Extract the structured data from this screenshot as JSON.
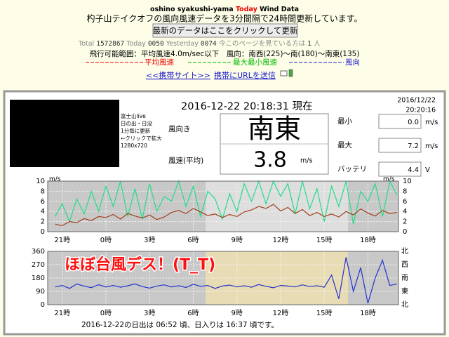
{
  "header": {
    "site": "oshino syakushi-yama",
    "today": "Today",
    "title": "Wind Data",
    "description": "杓子山テイクオフの風向風速データを3分間隔で24時間更新しています。",
    "refresh_button": "最新のデータはここをクリックして更新",
    "counter": {
      "total_label": "Total",
      "total": 1572867,
      "today_label": "Today",
      "today": "0050",
      "yesterday_label": "Yesterday",
      "yesterday": "0074",
      "viewers_label": "今このページを見ている方は",
      "viewers": 1,
      "viewers_unit": "人"
    },
    "flyable_range": "飛行可能範囲：平均風速4.0m/sec以下　風向：南西(225)～南(180)～南東(135)",
    "links": [
      "<<携帯サイト>>",
      "携帯にURLを送信"
    ]
  },
  "panel": {
    "webcam_caption": [
      "富士山live",
      "日の出・日没",
      "1分毎に更新",
      "←クリックで拡大",
      "1280x720"
    ],
    "timestamp": "2016-12-22 20:18:31 現在",
    "updated_date": "2016/12/22",
    "updated_time": "20:20:16",
    "direction_label": "風向き",
    "direction": "南東",
    "speed_label": "風速(平均)",
    "speed": 3.8,
    "speed_unit": "m/s",
    "min": {
      "label": "最小",
      "value": "0.0",
      "unit": "m/s"
    },
    "max": {
      "label": "最大",
      "value": 7.2,
      "unit": "m/s"
    },
    "battery": {
      "label": "バッテリ",
      "value": 4.4,
      "unit": "V"
    }
  },
  "chart_data": [
    {
      "type": "line",
      "x": [
        20.5,
        21,
        21.5,
        22,
        22.5,
        23,
        23.5,
        24,
        24.5,
        25,
        25.5,
        26,
        26.5,
        27,
        27.5,
        28,
        28.5,
        29,
        29.5,
        30,
        30.5,
        31,
        31.5,
        32,
        32.5,
        33,
        33.5,
        34,
        34.5,
        35,
        35.5,
        36,
        36.5,
        37,
        37.5,
        38,
        38.5,
        39,
        39.5,
        40,
        40.5,
        41,
        41.5,
        42,
        42.5,
        43,
        43.5,
        44
      ],
      "xlim": [
        20,
        44.1
      ],
      "xticks": [
        {
          "value": 21,
          "label": "21時"
        },
        {
          "value": 24,
          "label": "0時"
        },
        {
          "value": 27,
          "label": "3時"
        },
        {
          "value": 30,
          "label": "6時"
        },
        {
          "value": 33,
          "label": "9時"
        },
        {
          "value": 36,
          "label": "12時"
        },
        {
          "value": 39,
          "label": "15時"
        },
        {
          "value": 42,
          "label": "18時"
        }
      ],
      "ylim": [
        0,
        10
      ],
      "yticks": [
        0,
        2,
        4,
        6,
        8,
        10
      ],
      "y_unit": "m/s",
      "grid": true,
      "series": [
        {
          "name": "最大最小風速",
          "color": "#22dd88",
          "values": [
            3.0,
            5.5,
            2.0,
            6.5,
            3.5,
            8.0,
            4.0,
            9.0,
            5.0,
            10.0,
            3.0,
            8.5,
            2.5,
            9.5,
            4.0,
            7.0,
            6.0,
            10.0,
            5.0,
            9.0,
            3.0,
            8.0,
            6.5,
            2.5,
            7.5,
            4.0,
            9.5,
            6.0,
            10.0,
            5.5,
            10.0,
            7.0,
            9.5,
            3.5,
            10.0,
            4.5,
            8.5,
            2.0,
            9.0,
            5.0,
            10.0,
            1.5,
            8.0,
            6.0,
            9.5,
            3.0,
            10.0,
            7.2
          ]
        },
        {
          "name": "平均風速",
          "color": "#a0401c",
          "values": [
            1.5,
            1.2,
            2.0,
            1.8,
            2.6,
            2.2,
            3.0,
            2.8,
            3.4,
            2.5,
            3.6,
            3.1,
            2.7,
            3.3,
            2.4,
            2.9,
            3.8,
            4.2,
            3.6,
            4.6,
            3.9,
            3.2,
            3.5,
            2.8,
            3.4,
            3.0,
            3.9,
            4.3,
            5.0,
            4.6,
            5.4,
            4.1,
            4.8,
            3.6,
            4.4,
            3.2,
            3.8,
            3.0,
            3.5,
            2.9,
            4.0,
            3.3,
            4.5,
            3.7,
            3.1,
            4.2,
            3.6,
            3.8
          ]
        }
      ]
    },
    {
      "type": "line",
      "x": [
        20.5,
        21,
        21.5,
        22,
        22.5,
        23,
        23.5,
        24,
        24.5,
        25,
        25.5,
        26,
        26.5,
        27,
        27.5,
        28,
        28.5,
        29,
        29.5,
        30,
        30.5,
        31,
        31.5,
        32,
        32.5,
        33,
        33.5,
        34,
        34.5,
        35,
        35.5,
        36,
        36.5,
        37,
        37.5,
        38,
        38.5,
        39,
        39.5,
        40,
        40.5,
        41,
        41.5,
        42,
        42.5,
        43,
        43.5,
        44
      ],
      "xlim": [
        20,
        44.1
      ],
      "xticks": [
        {
          "value": 21,
          "label": "21時"
        },
        {
          "value": 24,
          "label": "0時"
        },
        {
          "value": 27,
          "label": "3時"
        },
        {
          "value": 30,
          "label": "6時"
        },
        {
          "value": 33,
          "label": "9時"
        },
        {
          "value": 36,
          "label": "12時"
        },
        {
          "value": 39,
          "label": "15時"
        },
        {
          "value": 42,
          "label": "18時"
        }
      ],
      "ylim": [
        0,
        360
      ],
      "yticks": [
        0,
        90,
        180,
        270,
        360
      ],
      "y2lim": [
        0,
        360
      ],
      "y2ticks": [
        {
          "value": 0,
          "label": "北"
        },
        {
          "value": 90,
          "label": "東"
        },
        {
          "value": 180,
          "label": "南"
        },
        {
          "value": 270,
          "label": "西"
        },
        {
          "value": 360,
          "label": "北"
        }
      ],
      "grid": true,
      "annotation": "ほぼ台風デス！(T_T)",
      "series": [
        {
          "name": "風向",
          "color": "#2233cc",
          "values": [
            120,
            130,
            110,
            140,
            125,
            115,
            135,
            120,
            130,
            118,
            128,
            140,
            122,
            112,
            126,
            134,
            120,
            128,
            116,
            138,
            124,
            130,
            110,
            126,
            132,
            120,
            128,
            118,
            136,
            124,
            114,
            130,
            126,
            120,
            134,
            122,
            128,
            118,
            200,
            40,
            320,
            90,
            250,
            10,
            180,
            300,
            130,
            140
          ]
        }
      ]
    }
  ],
  "footer": "2016-12-22の日出は 06:52 頃、日入りは 16:37 頃です。"
}
